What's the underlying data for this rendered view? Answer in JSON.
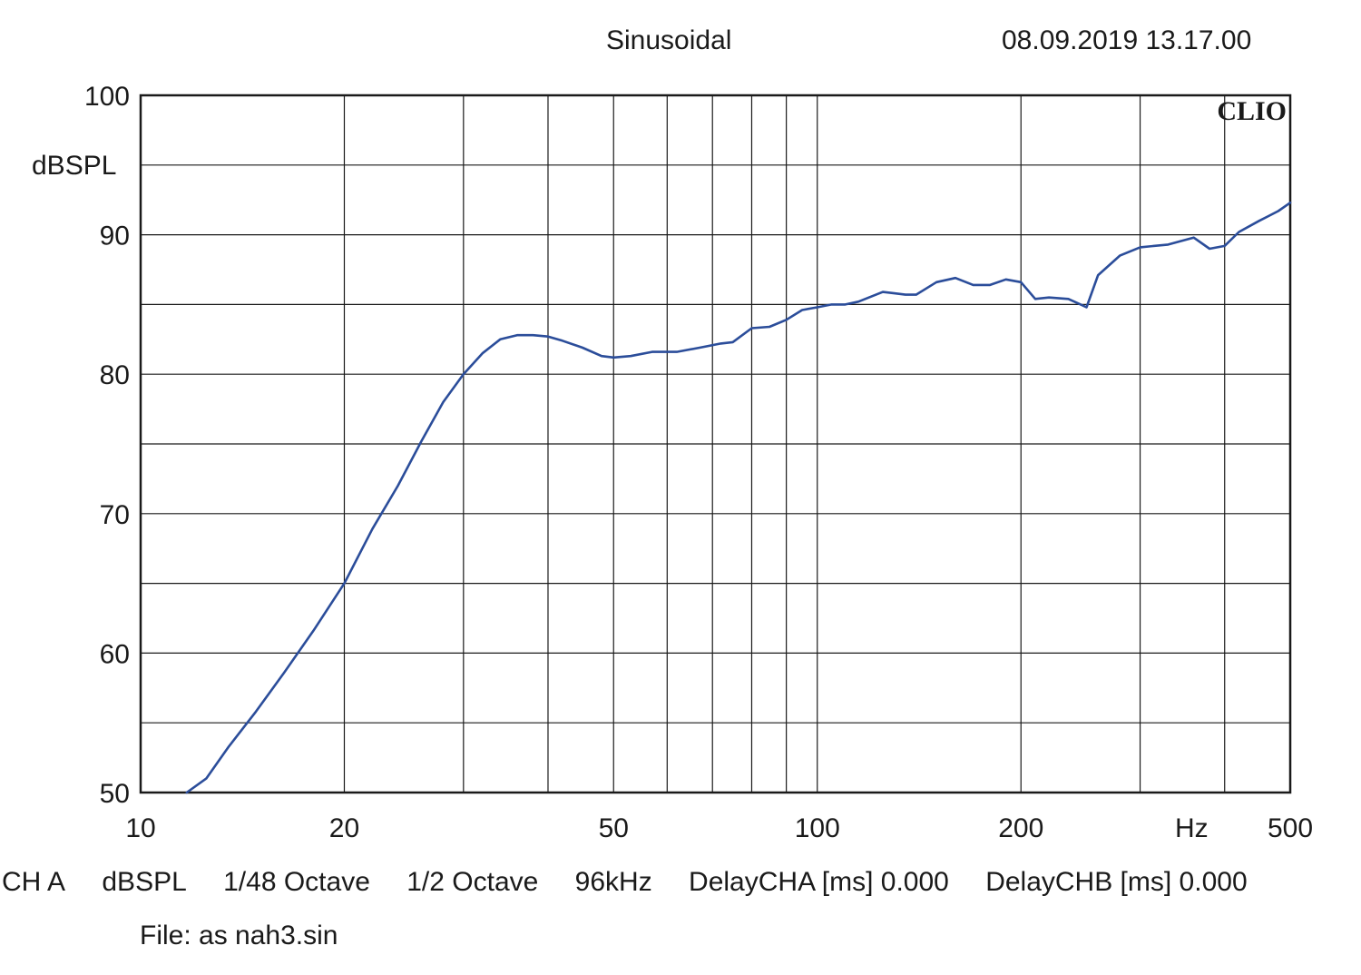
{
  "header": {
    "title": "Sinusoidal",
    "timestamp": "08.09.2019 13.17.00"
  },
  "chart_data": {
    "type": "line",
    "watermark": "CLIO",
    "ylabel": "dBSPL",
    "xunit": "Hz",
    "xscale": "log",
    "xlim": [
      10,
      500
    ],
    "ylim": [
      50,
      100
    ],
    "xticks": [
      10,
      20,
      50,
      100,
      200,
      500
    ],
    "xtick_labels": [
      "10",
      "20",
      "50",
      "100",
      "200",
      "500"
    ],
    "yticks": [
      50,
      60,
      70,
      80,
      90,
      100
    ],
    "ytick_labels": [
      "50",
      "60",
      "70",
      "80",
      "90",
      "100"
    ],
    "grid": true,
    "line_color": "#2b4d9a",
    "series": [
      {
        "x": [
          11.7,
          12.5,
          13.5,
          14.8,
          16.3,
          18.0,
          20.0,
          22.0,
          24.0,
          26.0,
          28.0,
          30.0,
          32.0,
          34.0,
          36.0,
          38.0,
          40.0,
          42.0,
          45.0,
          48.0,
          50.0,
          53.0,
          57.0,
          62.0,
          67.0,
          72.0,
          75.0,
          80.0,
          85.0,
          90.0,
          95.0,
          100.0,
          105.0,
          110.0,
          115.0,
          125.0,
          130.0,
          135.0,
          140.0,
          150.0,
          160.0,
          170.0,
          180.0,
          190.0,
          200.0,
          210.0,
          220.0,
          235.0,
          245.0,
          250.0,
          260.0,
          280.0,
          300.0,
          330.0,
          360.0,
          380.0,
          400.0,
          420.0,
          450.0,
          480.0,
          500.0
        ],
        "y": [
          50.0,
          51.0,
          53.3,
          55.8,
          58.6,
          61.6,
          65.0,
          68.9,
          72.0,
          75.2,
          78.0,
          80.0,
          81.5,
          82.5,
          82.8,
          82.8,
          82.7,
          82.4,
          81.9,
          81.3,
          81.2,
          81.3,
          81.6,
          81.6,
          81.9,
          82.2,
          82.3,
          83.3,
          83.4,
          83.9,
          84.6,
          84.8,
          85.0,
          85.0,
          85.2,
          85.9,
          85.8,
          85.7,
          85.7,
          86.6,
          86.9,
          86.4,
          86.4,
          86.8,
          86.6,
          85.4,
          85.5,
          85.4,
          85.0,
          84.8,
          87.1,
          88.5,
          89.1,
          89.3,
          89.8,
          89.0,
          89.2,
          90.2,
          91.0,
          91.7,
          92.3
        ]
      }
    ]
  },
  "footer": {
    "channel": "CH A",
    "unit": "dBSPL",
    "resolution": "1/48 Octave",
    "smoothing": "1/2 Octave",
    "sample_rate": "96kHz",
    "delay_cha": "DelayCHA [ms] 0.000",
    "delay_chb": "DelayCHB [ms] 0.000",
    "file": "File: as nah3.sin"
  }
}
